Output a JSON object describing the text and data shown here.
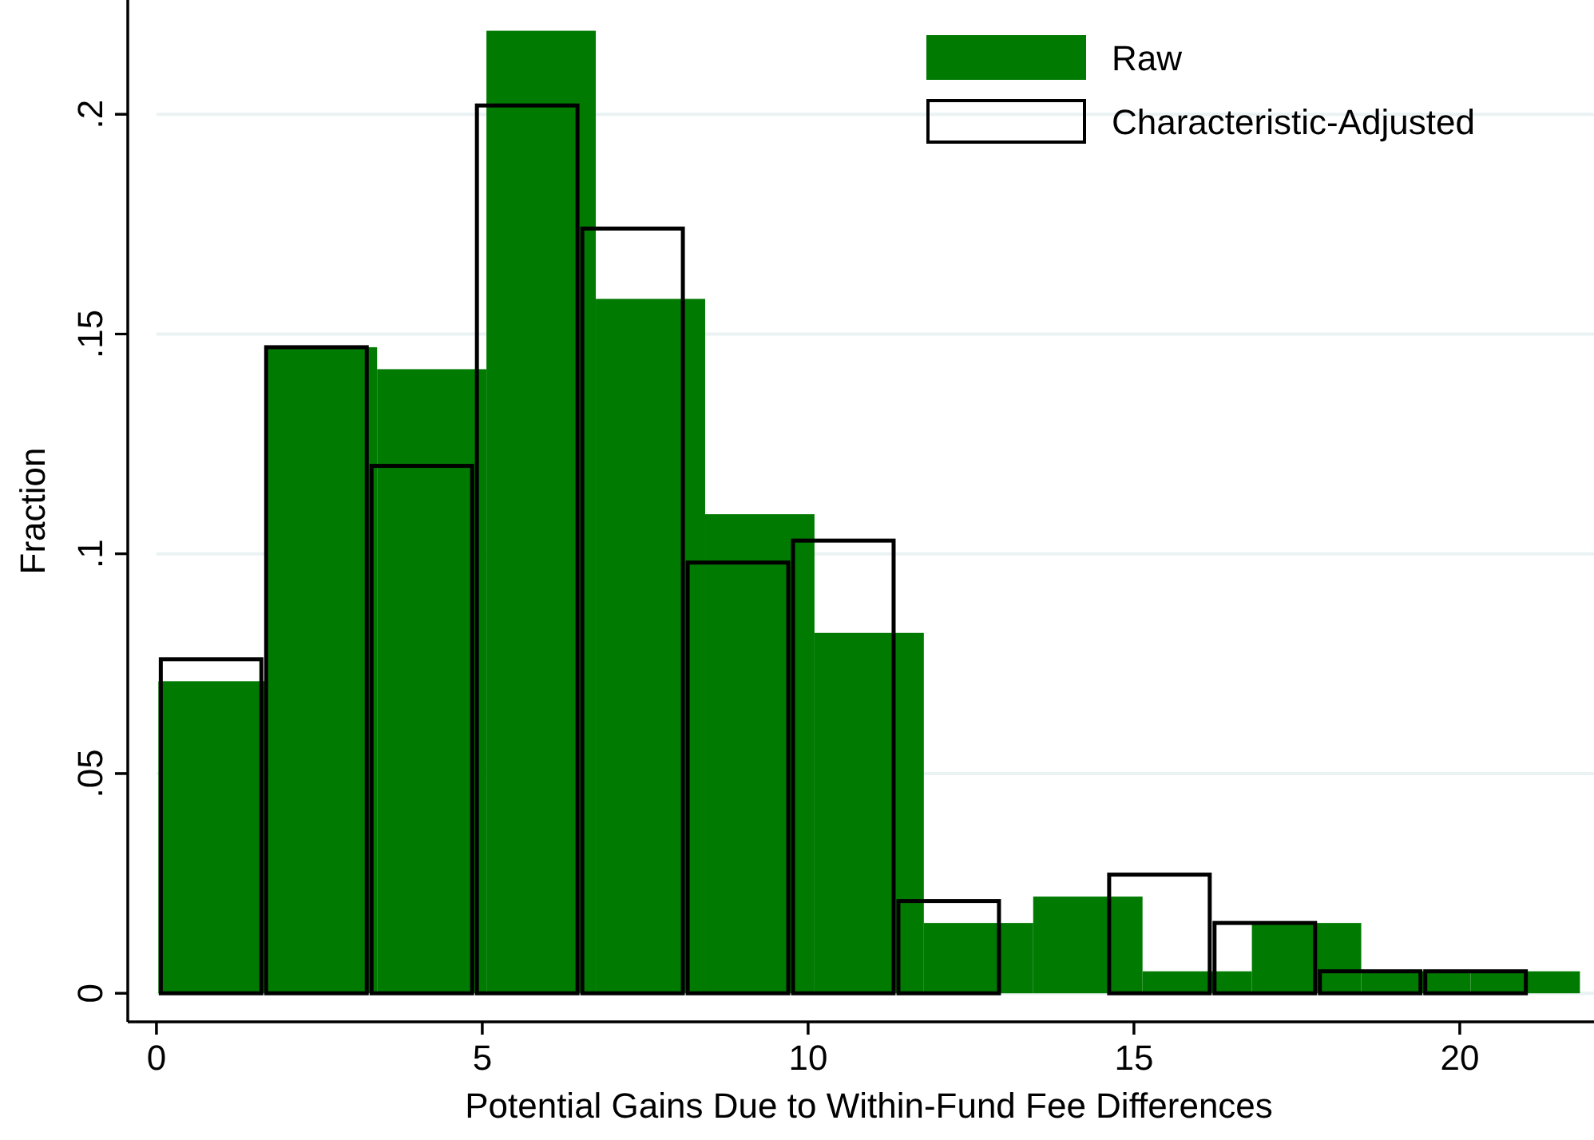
{
  "chart_data": [
    {
      "type": "histogram",
      "xlabel": "Potential Gains Due to Within-Fund Fee Differences",
      "ylabel": "Fraction",
      "series": [
        {
          "name": "Raw",
          "color": "#007a00",
          "values": [
            0.071,
            0.147,
            0.142,
            0.219,
            0.158,
            0.109,
            0.082,
            0.016,
            0.022,
            0.005,
            0.016,
            0.005,
            0.005
          ]
        }
      ],
      "bins": [
        0.03,
        1.708,
        3.386,
        5.064,
        6.742,
        8.42,
        10.098,
        11.776,
        13.454,
        15.132,
        16.81,
        18.488,
        20.166,
        21.844
      ],
      "xlim": [
        -0.44,
        22.06
      ],
      "xticks": [
        0,
        5,
        10,
        15,
        20
      ],
      "ylim": [
        -0.0065,
        0.226
      ],
      "yticks": [
        {
          "value": 0,
          "label": "0"
        },
        {
          "value": 0.05,
          "label": ".05"
        },
        {
          "value": 0.1,
          "label": ".1"
        },
        {
          "value": 0.15,
          "label": ".15"
        },
        {
          "value": 0.2,
          "label": ".2"
        }
      ],
      "grid": "y",
      "legend": "top right"
    },
    {
      "type": "histogram",
      "series": [
        {
          "name": "Characteristic-Adjusted",
          "color": "#000000",
          "line_style": "solid",
          "values": [
            0.076,
            0.147,
            0.12,
            0.202,
            0.174,
            0.098,
            0.103,
            0.021,
            0,
            0.027,
            0.016,
            0.005,
            0.005
          ]
        }
      ],
      "bins": [
        0.03,
        1.647,
        3.264,
        4.881,
        6.498,
        8.115,
        9.732,
        11.349,
        12.966,
        14.583,
        16.2,
        17.817,
        19.434,
        21.051
      ],
      "xlim": [
        -0.44,
        22.06
      ],
      "xticks": [
        0,
        5,
        10,
        15,
        20
      ],
      "ylim": [
        -0.0065,
        0.226
      ],
      "yticks": [
        0,
        0.05,
        0.1,
        0.15,
        0.2
      ],
      "tick_labels": false,
      "legend": "top right"
    }
  ]
}
